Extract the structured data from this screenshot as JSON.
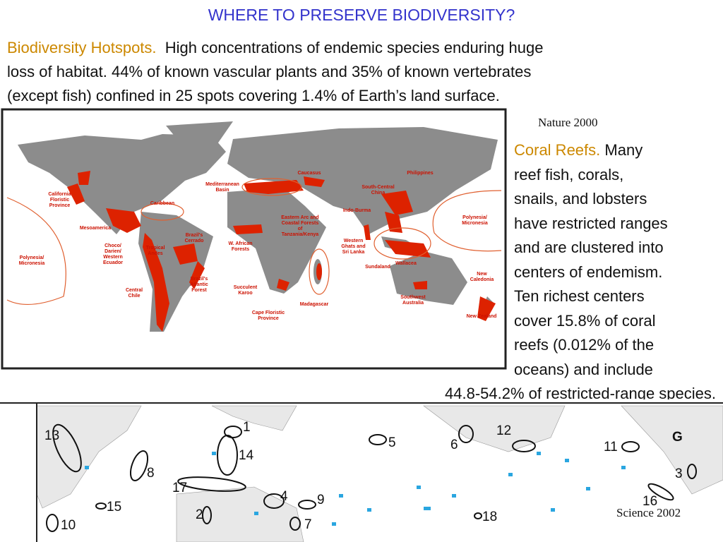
{
  "title": "WHERE TO PRESERVE BIODIVERSITY?",
  "hotspots": {
    "heading": "Biodiversity Hotspots.",
    "lines": [
      "High concentrations of endemic species enduring huge",
      "loss of habitat.  44% of known vascular plants and  35% of known vertebrates",
      "(except fish) confined in 25 spots covering 1.4% of Earth’s land surface."
    ],
    "source": "Nature 2000",
    "map_labels": [
      "California Floristic Province",
      "Caribbean",
      "Mesoamerica",
      "Choco/ Darien/ Western Ecuador",
      "Tropical Andes",
      "Brazil's Cerrado",
      "Brazil's Atlantic Forest",
      "Central Chile",
      "Polynesia/ Micronesia",
      "Mediterranean Basin",
      "Caucasus",
      "W. African Forests",
      "Eastern Arc and Coastal Forests of Tanzania/Kenya",
      "Succulent Karoo",
      "Cape Floristic Province",
      "Madagascar",
      "Western Ghats and Sri Lanka",
      "Indo-Burma",
      "South-Central China",
      "Philippines",
      "Sundaland",
      "Wallacea",
      "Southwest Australia",
      "New Caledonia",
      "New Zealand",
      "Polynesia/ Micronesia"
    ]
  },
  "coral": {
    "heading": "Coral Reefs.",
    "lines": [
      "Many",
      "reef fish, corals,",
      "snails, and lobsters",
      "have restricted ranges",
      "and are clustered into",
      "centers of endemism.",
      "Ten richest centers",
      "cover 15.8% of coral",
      "reefs (0.012% of the",
      "oceans) and include",
      "44.8-54.2% of restricted-range species."
    ],
    "source": "Science 2002",
    "map_labels": [
      "1",
      "13",
      "14",
      "8",
      "17",
      "15",
      "10",
      "2",
      "4",
      "9",
      "7",
      "5",
      "6",
      "12",
      "11",
      "G",
      "3",
      "16",
      "18"
    ]
  }
}
